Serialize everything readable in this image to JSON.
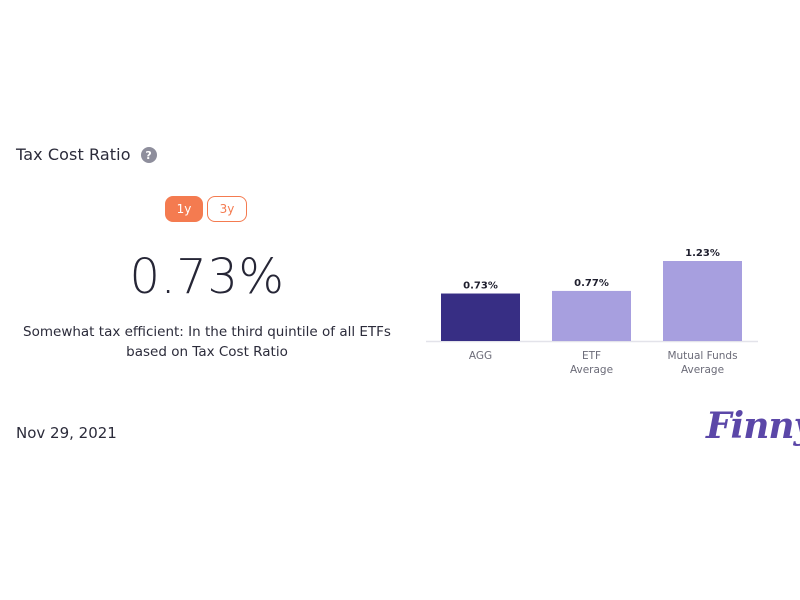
{
  "header": {
    "title": "Tax Cost Ratio",
    "help_icon": "question-icon"
  },
  "toggle": {
    "options": [
      "1y",
      "3y"
    ],
    "selected": "1y"
  },
  "summary": {
    "value": "0.73%",
    "description": "Somewhat tax efficient: In the third quintile of all ETFs based on Tax Cost Ratio"
  },
  "footer": {
    "date": "Nov 29, 2021",
    "logo": "Finny"
  },
  "colors": {
    "accent": "#f47b50",
    "primary_bar": "#372e84",
    "secondary_bar": "#a79fdf",
    "logo": "#5b47a8"
  },
  "chart_data": {
    "type": "bar",
    "categories": [
      [
        "AGG"
      ],
      [
        "ETF",
        "Average"
      ],
      [
        "Mutual Funds",
        "Average"
      ]
    ],
    "values": [
      0.73,
      0.77,
      1.23
    ],
    "value_labels": [
      "0.73%",
      "0.77%",
      "1.23%"
    ],
    "bar_colors": [
      "#372e84",
      "#a79fdf",
      "#a79fdf"
    ],
    "ylim": [
      0,
      1.23
    ],
    "grid": false,
    "legend": "none"
  }
}
